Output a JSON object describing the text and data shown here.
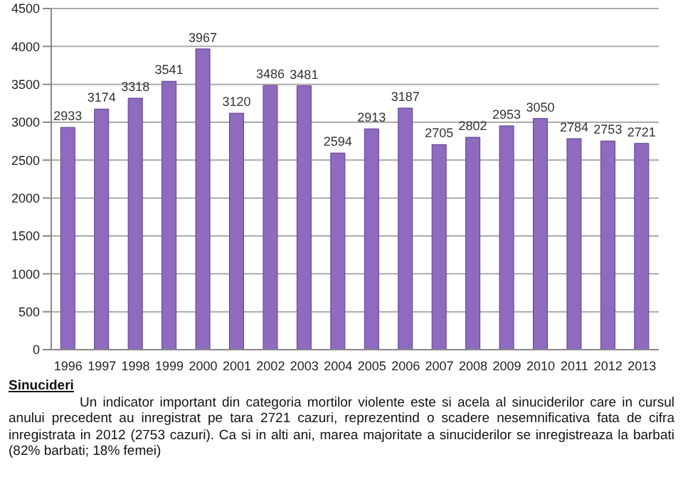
{
  "chart_data": {
    "type": "bar",
    "categories": [
      "1996",
      "1997",
      "1998",
      "1999",
      "2000",
      "2001",
      "2002",
      "2003",
      "2004",
      "2005",
      "2006",
      "2007",
      "2008",
      "2009",
      "2010",
      "2011",
      "2012",
      "2013"
    ],
    "values": [
      2933,
      3174,
      3318,
      3541,
      3967,
      3120,
      3486,
      3481,
      2594,
      2913,
      3187,
      2705,
      2802,
      2953,
      3050,
      2784,
      2753,
      2721
    ],
    "color": "#8e6bbf",
    "ylim": [
      0,
      4500
    ],
    "yticks": [
      0,
      500,
      1000,
      1500,
      2000,
      2500,
      3000,
      3500,
      4000,
      4500
    ],
    "grid": "y",
    "data_labels": true,
    "annotations": [
      "Sinucideri",
      "Un indicator important din categoria mortilor violente este si acela al sinuciderilor care in cursul anului precedent au inregistrat pe tara 2721 cazuri, reprezentind o scadere nesemnificativa fata de cifra inregistrata in 2012  (2753 cazuri). Ca si in alti ani, marea majoritate a sinuciderilor se inregistreaza la barbati (82% barbati; 18% femei)"
    ]
  }
}
